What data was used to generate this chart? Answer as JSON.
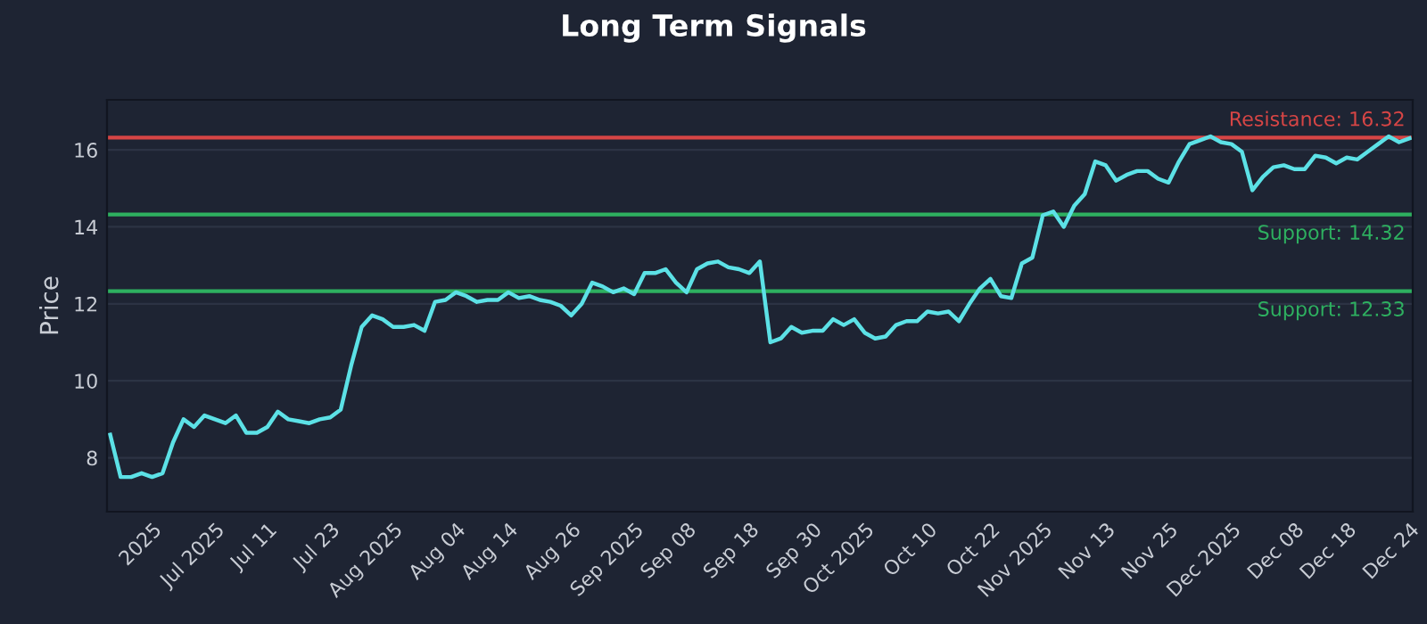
{
  "chart_data": {
    "type": "line",
    "title": "Long Term Signals",
    "ylabel": "Price",
    "categories": [
      null,
      null,
      null,
      null,
      "2025",
      null,
      null,
      null,
      null,
      null,
      "Jul 2025",
      null,
      null,
      null,
      null,
      "Jul 11",
      null,
      null,
      null,
      null,
      null,
      "Jul 23",
      null,
      null,
      null,
      null,
      null,
      "Aug 2025",
      null,
      null,
      null,
      null,
      null,
      "Aug 04",
      null,
      null,
      null,
      null,
      "Aug 14",
      null,
      null,
      null,
      null,
      null,
      "Aug 26",
      null,
      null,
      null,
      null,
      null,
      "Sep 2025",
      null,
      null,
      null,
      null,
      "Sep 08",
      null,
      null,
      null,
      null,
      null,
      "Sep 18",
      null,
      null,
      null,
      null,
      null,
      "Sep 30",
      null,
      null,
      null,
      null,
      "Oct 2025",
      null,
      null,
      null,
      null,
      null,
      "Oct 10",
      null,
      null,
      null,
      null,
      null,
      "Oct 22",
      null,
      null,
      null,
      null,
      "Nov 2025",
      null,
      null,
      null,
      null,
      null,
      "Nov 13",
      null,
      null,
      null,
      null,
      null,
      "Nov 25",
      null,
      null,
      null,
      null,
      null,
      "Dec 2025",
      null,
      null,
      null,
      null,
      null,
      "Dec 08",
      null,
      null,
      null,
      null,
      "Dec 18",
      null,
      null,
      null,
      null,
      null,
      "Dec 24"
    ],
    "series": [
      {
        "color": "#5ce1e6",
        "values": [
          8.6,
          7.5,
          7.5,
          7.6,
          7.5,
          7.6,
          8.4,
          9.0,
          8.8,
          9.1,
          9.0,
          8.9,
          9.1,
          8.65,
          8.65,
          8.8,
          9.2,
          9.0,
          8.95,
          8.9,
          9.0,
          9.05,
          9.25,
          10.4,
          11.4,
          11.7,
          11.6,
          11.4,
          11.4,
          11.45,
          11.3,
          12.05,
          12.1,
          12.3,
          12.2,
          12.05,
          12.1,
          12.1,
          12.3,
          12.15,
          12.2,
          12.1,
          12.05,
          11.95,
          11.7,
          12.0,
          12.55,
          12.45,
          12.3,
          12.4,
          12.25,
          12.8,
          12.8,
          12.9,
          12.55,
          12.3,
          12.9,
          13.05,
          13.1,
          12.95,
          12.9,
          12.8,
          13.1,
          11.0,
          11.1,
          11.4,
          11.25,
          11.3,
          11.3,
          11.6,
          11.45,
          11.6,
          11.25,
          11.1,
          11.15,
          11.45,
          11.55,
          11.55,
          11.8,
          11.75,
          11.8,
          11.55,
          12.0,
          12.4,
          12.65,
          12.2,
          12.15,
          13.05,
          13.2,
          14.3,
          14.4,
          14.0,
          14.55,
          14.85,
          15.7,
          15.6,
          15.2,
          15.35,
          15.45,
          15.45,
          15.25,
          15.15,
          15.7,
          16.15,
          16.25,
          16.35,
          16.2,
          16.15,
          15.95,
          14.95,
          15.3,
          15.55,
          15.6,
          15.5,
          15.5,
          15.85,
          15.8,
          15.65,
          15.8,
          15.75,
          15.95,
          16.15,
          16.35,
          16.2,
          16.3
        ]
      }
    ],
    "ylim": [
      6.6,
      17.3
    ],
    "yticks": [
      8,
      10,
      12,
      14,
      16
    ],
    "grid": "y",
    "ref_lines": [
      {
        "axis": "y",
        "value": 16.32,
        "label": "Resistance: 16.32",
        "color": "#d64545"
      },
      {
        "axis": "y",
        "value": 14.32,
        "label": "Support: 14.32",
        "color": "#2eb060"
      },
      {
        "axis": "y",
        "value": 12.33,
        "label": "Support: 12.33",
        "color": "#2eb060"
      }
    ]
  }
}
